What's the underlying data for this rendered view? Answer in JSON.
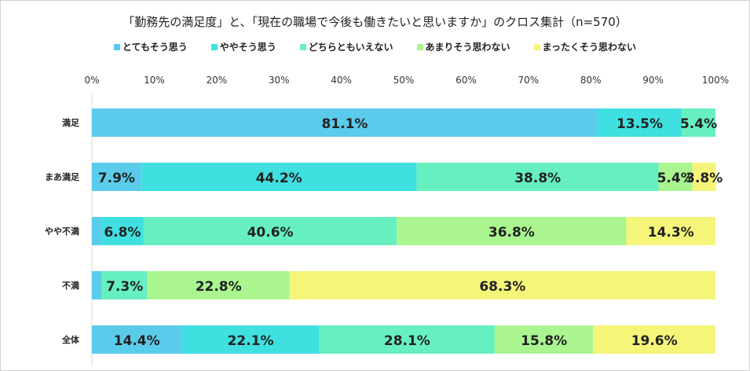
{
  "chart_data": {
    "type": "bar",
    "orientation": "horizontal",
    "stacked": "percent",
    "title": "「勤務先の満足度」と、「現在の職場で今後も働きたいと思いますか」のクロス集計（n=570）",
    "categories": [
      "満足",
      "まあ満足",
      "やや不満",
      "不満",
      "全体"
    ],
    "xlim": [
      0,
      100
    ],
    "xticks": [
      "0%",
      "10%",
      "20%",
      "30%",
      "40%",
      "50%",
      "60%",
      "70%",
      "80%",
      "90%",
      "100%"
    ],
    "legend_position": "top",
    "series": [
      {
        "name": "とてもそう思う",
        "color": "#5BCBEB",
        "values": [
          81.1,
          7.9,
          1.5,
          1.6,
          14.4
        ],
        "labels": [
          "81.1%",
          "7.9%",
          "",
          "",
          "14.4%"
        ]
      },
      {
        "name": "ややそう思う",
        "color": "#40E0E0",
        "values": [
          13.5,
          44.2,
          6.8,
          0,
          22.1
        ],
        "labels": [
          "13.5%",
          "44.2%",
          "6.8%",
          "",
          "22.1%"
        ]
      },
      {
        "name": "どちらともいえない",
        "color": "#66F0C0",
        "values": [
          5.4,
          38.8,
          40.6,
          7.3,
          28.1
        ],
        "labels": [
          "5.4%",
          "38.8%",
          "40.6%",
          "7.3%",
          "28.1%"
        ]
      },
      {
        "name": "あまりそう思わない",
        "color": "#AAF590",
        "values": [
          0,
          5.4,
          36.8,
          22.8,
          15.8
        ],
        "labels": [
          "",
          "5.4%",
          "36.8%",
          "22.8%",
          "15.8%"
        ]
      },
      {
        "name": "まったくそう思わない",
        "color": "#F5F57A",
        "values": [
          0,
          3.8,
          14.3,
          68.3,
          19.6
        ],
        "labels": [
          "",
          "3.8%",
          "14.3%",
          "68.3%",
          "19.6%"
        ]
      }
    ]
  }
}
